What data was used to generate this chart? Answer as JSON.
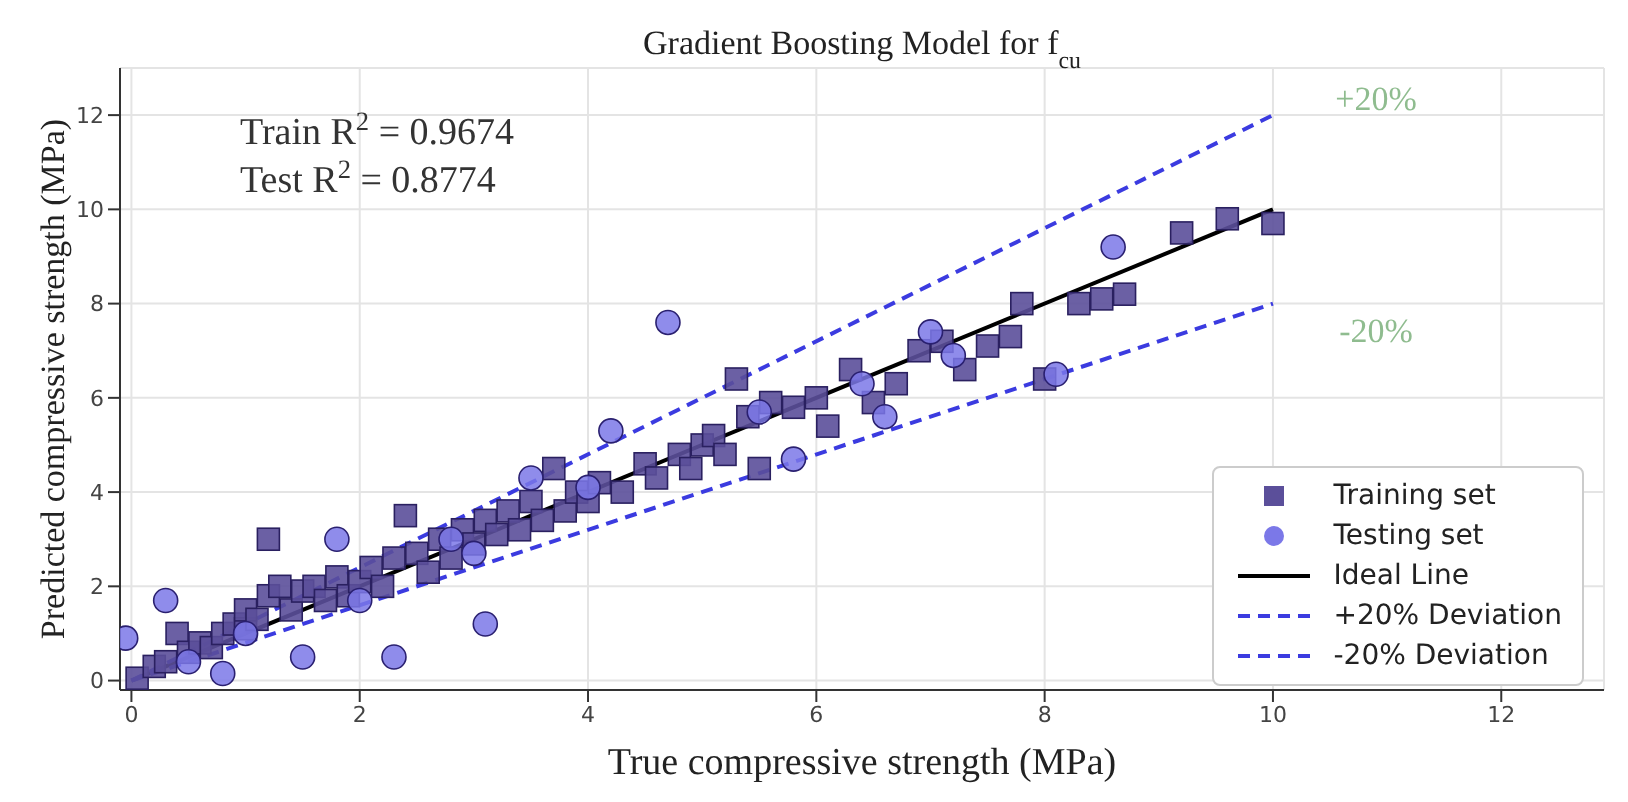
{
  "chart_data": {
    "type": "scatter",
    "title": "Gradient Boosting Model for f$_{cu}$",
    "xlabel": "True compressive strength (MPa)",
    "ylabel": "Predicted compressive strength (MPa)",
    "xlim": [
      -0.1,
      12.9
    ],
    "ylim": [
      -0.2,
      13
    ],
    "xticks": [
      0,
      2,
      4,
      6,
      8,
      10,
      12
    ],
    "yticks": [
      0,
      2,
      4,
      6,
      8,
      10,
      12
    ],
    "grid": true,
    "legend": "bottom right",
    "annotations": [
      "Train R$^{2}$ = 0.9674",
      "Test R$^{2}$ = 0.8774",
      "+20%",
      "-20%"
    ],
    "series": [
      {
        "name": "Training set",
        "marker": "square",
        "color": "#5b4f9a",
        "x": [
          0.05,
          0.2,
          0.3,
          0.4,
          0.5,
          0.6,
          0.7,
          0.8,
          0.9,
          1.0,
          1.0,
          1.1,
          1.2,
          1.2,
          1.3,
          1.4,
          1.5,
          1.6,
          1.7,
          1.8,
          1.9,
          2.0,
          2.1,
          2.2,
          2.3,
          2.4,
          2.5,
          2.6,
          2.7,
          2.8,
          2.9,
          3.0,
          3.1,
          3.2,
          3.3,
          3.4,
          3.5,
          3.6,
          3.7,
          3.8,
          3.9,
          4.0,
          4.1,
          4.3,
          4.5,
          4.6,
          4.8,
          4.9,
          5.0,
          5.1,
          5.2,
          5.3,
          5.4,
          5.5,
          5.6,
          5.8,
          6.0,
          6.1,
          6.3,
          6.5,
          6.7,
          6.9,
          7.1,
          7.3,
          7.5,
          7.7,
          7.8,
          8.0,
          8.3,
          8.5,
          8.7,
          9.2,
          9.6,
          10.0
        ],
        "values": [
          0.05,
          0.3,
          0.4,
          1.0,
          0.6,
          0.8,
          0.7,
          1.0,
          1.2,
          1.1,
          1.5,
          1.3,
          3.0,
          1.8,
          2.0,
          1.5,
          1.9,
          2.0,
          1.7,
          2.2,
          1.8,
          2.1,
          2.4,
          2.0,
          2.6,
          3.5,
          2.7,
          2.3,
          3.0,
          2.6,
          3.2,
          2.9,
          3.4,
          3.1,
          3.6,
          3.2,
          3.8,
          3.4,
          4.5,
          3.6,
          4.0,
          3.8,
          4.2,
          4.0,
          4.6,
          4.3,
          4.8,
          4.5,
          5.0,
          5.2,
          4.8,
          6.4,
          5.6,
          4.5,
          5.9,
          5.8,
          6.0,
          5.4,
          6.6,
          5.9,
          6.3,
          7.0,
          7.2,
          6.6,
          7.1,
          7.3,
          8.0,
          6.4,
          8.0,
          8.1,
          8.2,
          9.5,
          9.8,
          9.7
        ]
      },
      {
        "name": "Testing set",
        "marker": "circle",
        "color": "#7b78e8",
        "x": [
          -0.05,
          0.3,
          0.8,
          1.5,
          1.8,
          2.3,
          3.1,
          2.0,
          2.8,
          3.5,
          4.2,
          4.7,
          4.0,
          1.0,
          0.5,
          3.0,
          5.5,
          6.4,
          6.6,
          7.0,
          7.2,
          8.1,
          8.6,
          5.8
        ],
        "values": [
          0.9,
          1.7,
          0.15,
          0.5,
          3.0,
          0.5,
          1.2,
          1.7,
          3.0,
          4.3,
          5.3,
          7.6,
          4.1,
          1.0,
          0.4,
          2.7,
          5.7,
          6.3,
          5.6,
          7.4,
          6.9,
          6.5,
          9.2,
          4.7
        ]
      },
      {
        "name": "Ideal Line",
        "type": "line",
        "marker": "none",
        "line_style": "solid",
        "color": "#000000",
        "x": [
          0,
          10
        ],
        "values": [
          0,
          10
        ]
      },
      {
        "name": "+20% Deviation",
        "type": "line",
        "marker": "none",
        "line_style": "dashed",
        "color": "#3b3be0",
        "x": [
          0,
          10
        ],
        "values": [
          0,
          12
        ]
      },
      {
        "name": "-20% Deviation",
        "type": "line",
        "marker": "none",
        "line_style": "dashed",
        "color": "#3b3be0",
        "x": [
          0,
          10
        ],
        "values": [
          0,
          8
        ]
      }
    ]
  }
}
